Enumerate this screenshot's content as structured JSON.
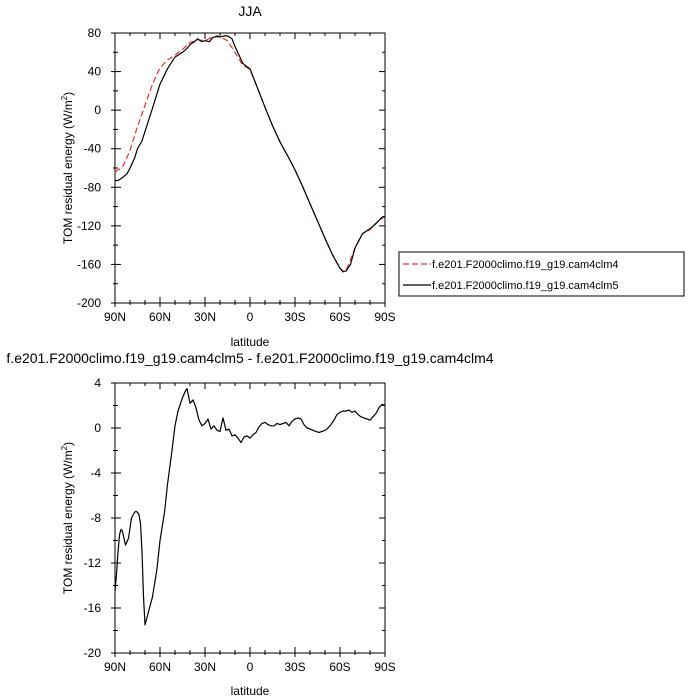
{
  "chart_data": [
    {
      "type": "line",
      "title": "JJA",
      "xlabel": "latitude",
      "ylabel": "TOM residual energy (W/m²)",
      "ylabel_main": "TOM residual energy (W/m",
      "ylabel_sup": "2",
      "ylabel_close": ")",
      "xlim": [
        90,
        -90
      ],
      "ylim": [
        -200,
        80
      ],
      "x_ticks": [
        90,
        60,
        30,
        0,
        -30,
        -60,
        -90
      ],
      "x_tick_labels": [
        "90N",
        "60N",
        "30N",
        "0",
        "30S",
        "60S",
        "90S"
      ],
      "y_ticks": [
        -200,
        -160,
        -120,
        -80,
        -40,
        0,
        40,
        80
      ],
      "y_tick_labels": [
        "-200",
        "-160",
        "-120",
        "-80",
        "-40",
        "0",
        "40",
        "80"
      ],
      "legend_position": "right",
      "series": [
        {
          "name": "f.e201.F2000climo.f19_g19.cam4clm4",
          "color": "#e8312a",
          "dash": "dashed",
          "x": [
            90,
            85,
            80,
            75,
            70,
            65,
            60,
            55,
            50,
            45,
            40,
            35,
            30,
            25,
            20,
            15,
            10,
            5,
            0,
            -5,
            -10,
            -15,
            -20,
            -25,
            -30,
            -35,
            -40,
            -45,
            -50,
            -55,
            -60,
            -62,
            -65,
            -70,
            -75,
            -80,
            -85,
            -90
          ],
          "y": [
            -64,
            -59,
            -42,
            -17,
            5,
            27,
            44,
            52,
            57,
            63,
            70,
            73,
            72,
            76,
            76,
            72,
            60,
            47,
            42,
            23,
            3,
            -16,
            -33,
            -47,
            -62,
            -79,
            -97,
            -115,
            -133,
            -150,
            -164,
            -168,
            -163,
            -143,
            -128,
            -124,
            -116,
            -110
          ]
        },
        {
          "name": "f.e201.F2000climo.f19_g19.cam4clm5",
          "color": "#000000",
          "dash": "solid",
          "x": [
            90,
            88,
            85,
            82,
            80,
            77,
            75,
            72,
            70,
            65,
            60,
            55,
            50,
            45,
            42,
            40,
            37,
            35,
            32,
            30,
            27,
            25,
            22,
            20,
            17,
            15,
            12,
            10,
            7,
            5,
            2,
            0,
            -5,
            -10,
            -15,
            -20,
            -25,
            -30,
            -35,
            -40,
            -45,
            -50,
            -55,
            -60,
            -62,
            -64,
            -67,
            -70,
            -75,
            -80,
            -85,
            -88,
            -90
          ],
          "y": [
            -73,
            -73,
            -70,
            -66,
            -60,
            -50,
            -40,
            -32,
            -22,
            2,
            27,
            43,
            55,
            60,
            64,
            68,
            71,
            74,
            71,
            72,
            71,
            75,
            77,
            76,
            77,
            77,
            74,
            66,
            56,
            49,
            45,
            43,
            23,
            3,
            -16,
            -33,
            -47,
            -62,
            -79,
            -97,
            -115,
            -133,
            -150,
            -164,
            -167,
            -167,
            -160,
            -143,
            -128,
            -123,
            -116,
            -111,
            -110
          ]
        }
      ]
    },
    {
      "type": "line",
      "title": "f.e201.F2000climo.f19_g19.cam4clm5 - f.e201.F2000climo.f19_g19.cam4clm4",
      "xlabel": "latitude",
      "ylabel": "TOM residual energy (W/m²)",
      "ylabel_main": "TOM residual energy (W/m",
      "ylabel_sup": "2",
      "ylabel_close": ")",
      "xlim": [
        90,
        -90
      ],
      "ylim": [
        -20,
        4
      ],
      "x_ticks": [
        90,
        60,
        30,
        0,
        -30,
        -60,
        -90
      ],
      "x_tick_labels": [
        "90N",
        "60N",
        "30N",
        "0",
        "30S",
        "60S",
        "90S"
      ],
      "y_ticks": [
        -20,
        -16,
        -12,
        -8,
        -4,
        0,
        4
      ],
      "y_tick_labels": [
        "-20",
        "-16",
        "-12",
        "-8",
        "-4",
        "0",
        "4"
      ],
      "series": [
        {
          "name": "",
          "color": "#000000",
          "dash": "solid",
          "x": [
            90,
            89,
            88,
            87,
            86,
            85,
            84,
            83,
            81,
            79,
            77,
            76,
            75,
            74,
            73,
            72,
            71,
            70,
            68,
            65,
            62,
            60,
            57,
            55,
            52,
            50,
            48,
            46,
            45,
            44,
            43,
            42,
            40,
            38,
            36,
            34,
            32,
            30,
            28,
            26,
            24,
            22,
            20,
            18,
            16,
            14,
            12,
            10,
            8,
            6,
            4,
            2,
            0,
            -2,
            -4,
            -6,
            -8,
            -10,
            -12,
            -14,
            -16,
            -18,
            -20,
            -22,
            -24,
            -26,
            -28,
            -30,
            -32,
            -34,
            -36,
            -38,
            -40,
            -42,
            -44,
            -46,
            -48,
            -50,
            -52,
            -54,
            -56,
            -58,
            -60,
            -62,
            -64,
            -66,
            -68,
            -70,
            -72,
            -74,
            -76,
            -78,
            -80,
            -82,
            -84,
            -86,
            -88,
            -90
          ],
          "y": [
            -14.5,
            -13,
            -11,
            -9.5,
            -9,
            -9.2,
            -9.8,
            -10.4,
            -9.8,
            -8,
            -7.5,
            -7.4,
            -7.5,
            -7.7,
            -8.5,
            -11,
            -15,
            -17.5,
            -16.5,
            -15,
            -12.5,
            -10,
            -7.5,
            -5,
            -2,
            0.2,
            1.5,
            2.3,
            2.7,
            3.0,
            3.3,
            3.5,
            2.2,
            2.5,
            1.8,
            0.7,
            0.2,
            0.4,
            0.8,
            -0.1,
            0.2,
            -0.2,
            -0.3,
            0.9,
            -0.2,
            -0.1,
            -0.7,
            -0.6,
            -0.9,
            -1.3,
            -0.8,
            -0.7,
            -0.9,
            -0.6,
            -0.4,
            0.1,
            0.4,
            0.5,
            0.3,
            0.2,
            0.2,
            0.4,
            0.3,
            0.4,
            0.5,
            0.2,
            0.6,
            0.8,
            0.9,
            0.8,
            0.3,
            0.0,
            -0.1,
            -0.2,
            -0.3,
            -0.4,
            -0.3,
            -0.2,
            0.0,
            0.3,
            0.7,
            1.2,
            1.4,
            1.5,
            1.5,
            1.6,
            1.4,
            1.5,
            1.2,
            1.0,
            0.9,
            0.8,
            0.7,
            1.0,
            1.3,
            1.8,
            2.1,
            2.0
          ]
        }
      ]
    }
  ]
}
